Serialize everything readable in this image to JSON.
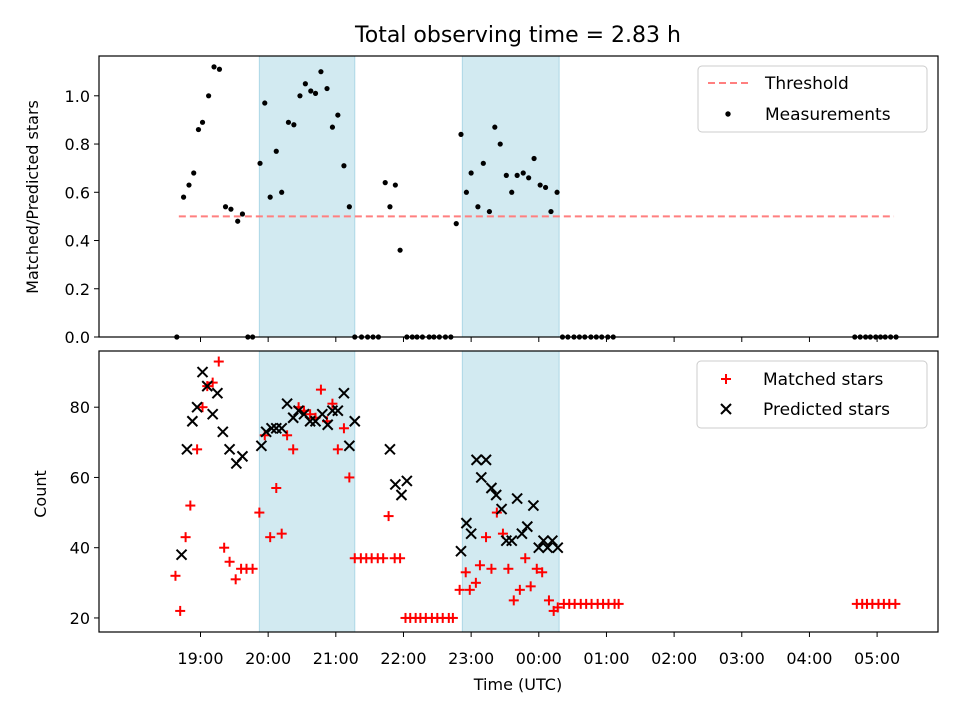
{
  "title": "Total observing time = 2.83 h",
  "xlabel": "Time (UTC)",
  "x_ticks": [
    "19:00",
    "20:00",
    "21:00",
    "22:00",
    "23:00",
    "00:00",
    "01:00",
    "02:00",
    "03:00",
    "04:00",
    "05:00"
  ],
  "colors": {
    "shade": "#add8e6",
    "threshold": "#ff7f7f",
    "measurement": "#000000",
    "matched": "#ff0000",
    "predicted": "#000000"
  },
  "chart_data": [
    {
      "type": "scatter",
      "ylabel": "Matched/Predicted stars",
      "y_ticks": [
        "0.0",
        "0.2",
        "0.4",
        "0.6",
        "0.8",
        "1.0"
      ],
      "xlim_hours": [
        17.5,
        29.9
      ],
      "ylim": [
        0.0,
        1.165
      ],
      "x_unit": "UTC hour (values past 24 are next day)",
      "shaded_intervals": [
        [
          19.87,
          21.28
        ],
        [
          22.87,
          24.3
        ]
      ],
      "threshold": {
        "name": "Threshold",
        "value": 0.5,
        "x_range": [
          18.68,
          29.25
        ]
      },
      "legend": {
        "position": "upper right",
        "entries": [
          "Threshold",
          "Measurements"
        ]
      },
      "series": [
        {
          "name": "Measurements",
          "x": [
            18.65,
            18.75,
            18.83,
            18.9,
            18.97,
            19.03,
            19.12,
            19.2,
            19.28,
            19.37,
            19.45,
            19.55,
            19.62,
            19.7,
            19.77,
            19.88,
            19.95,
            20.03,
            20.12,
            20.2,
            20.3,
            20.38,
            20.47,
            20.55,
            20.63,
            20.7,
            20.78,
            20.87,
            20.95,
            21.03,
            21.12,
            21.2,
            21.28,
            21.38,
            21.47,
            21.55,
            21.63,
            21.73,
            21.8,
            21.88,
            21.95,
            22.05,
            22.13,
            22.2,
            22.28,
            22.38,
            22.45,
            22.53,
            22.62,
            22.7,
            22.78,
            22.85,
            22.93,
            23.0,
            23.1,
            23.18,
            23.27,
            23.35,
            23.43,
            23.52,
            23.6,
            23.68,
            23.77,
            23.85,
            23.93,
            24.02,
            24.1,
            24.18,
            24.27,
            24.35,
            24.43,
            24.52,
            24.6,
            24.68,
            24.77,
            24.85,
            24.93,
            25.02,
            25.1,
            28.67,
            28.75,
            28.83,
            28.9,
            28.98,
            29.05,
            29.12,
            29.2,
            29.28
          ],
          "y": [
            0.0,
            0.58,
            0.63,
            0.68,
            0.86,
            0.89,
            1.0,
            1.12,
            1.11,
            0.54,
            0.53,
            0.48,
            0.51,
            0.0,
            0.0,
            0.72,
            0.97,
            0.58,
            0.77,
            0.6,
            0.89,
            0.88,
            1.0,
            1.05,
            1.02,
            1.01,
            1.1,
            1.03,
            0.87,
            0.92,
            0.71,
            0.54,
            0.0,
            0.0,
            0.0,
            0.0,
            0.0,
            0.64,
            0.54,
            0.63,
            0.36,
            0.0,
            0.0,
            0.0,
            0.0,
            0.0,
            0.0,
            0.0,
            0.0,
            0.0,
            0.47,
            0.84,
            0.6,
            0.68,
            0.54,
            0.72,
            0.52,
            0.87,
            0.8,
            0.67,
            0.6,
            0.67,
            0.68,
            0.66,
            0.74,
            0.63,
            0.62,
            0.52,
            0.6,
            0.0,
            0.0,
            0.0,
            0.0,
            0.0,
            0.0,
            0.0,
            0.0,
            0.0,
            0.0,
            0.0,
            0.0,
            0.0,
            0.0,
            0.0,
            0.0,
            0.0,
            0.0,
            0.0
          ]
        }
      ]
    },
    {
      "type": "scatter",
      "ylabel": "Count",
      "y_ticks": [
        "20",
        "40",
        "60",
        "80"
      ],
      "xlim_hours": [
        17.5,
        29.9
      ],
      "ylim": [
        16.0,
        96.0
      ],
      "x_unit": "UTC hour (values past 24 are next day)",
      "shaded_intervals": [
        [
          19.87,
          21.28
        ],
        [
          22.87,
          24.3
        ]
      ],
      "legend": {
        "position": "upper right",
        "entries": [
          "Matched stars",
          "Predicted stars"
        ]
      },
      "series": [
        {
          "name": "Matched stars",
          "marker": "plus",
          "x": [
            18.63,
            18.7,
            18.78,
            18.85,
            18.95,
            19.03,
            19.1,
            19.18,
            19.27,
            19.35,
            19.43,
            19.52,
            19.6,
            19.68,
            19.77,
            19.87,
            19.95,
            20.03,
            20.12,
            20.2,
            20.28,
            20.37,
            20.45,
            20.53,
            20.62,
            20.7,
            20.78,
            20.87,
            20.95,
            21.03,
            21.12,
            21.2,
            21.28,
            21.37,
            21.45,
            21.53,
            21.62,
            21.7,
            21.78,
            21.87,
            21.95,
            22.03,
            22.1,
            22.18,
            22.25,
            22.33,
            22.42,
            22.5,
            22.58,
            22.67,
            22.73,
            22.83,
            22.92,
            22.98,
            23.07,
            23.13,
            23.22,
            23.3,
            23.38,
            23.47,
            23.55,
            23.63,
            23.72,
            23.8,
            23.88,
            23.97,
            24.05,
            24.15,
            24.22,
            24.28,
            24.37,
            24.45,
            24.53,
            24.62,
            24.7,
            24.78,
            24.87,
            24.95,
            25.03,
            25.12,
            25.18,
            28.7,
            28.78,
            28.85,
            28.93,
            29.02,
            29.1,
            29.18,
            29.27
          ],
          "y": [
            32,
            22,
            43,
            52,
            68,
            80,
            86,
            87,
            93,
            40,
            36,
            31,
            34,
            34,
            34,
            50,
            72,
            43,
            57,
            44,
            72,
            68,
            80,
            79,
            78,
            77,
            85,
            76,
            81,
            68,
            74,
            60,
            37,
            37,
            37,
            37,
            37,
            37,
            49,
            37,
            37,
            20,
            20,
            20,
            20,
            20,
            20,
            20,
            20,
            20,
            20,
            28,
            33,
            28,
            30,
            35,
            43,
            34,
            50,
            44,
            34,
            25,
            28,
            37,
            29,
            34,
            33,
            25,
            22,
            23,
            24,
            24,
            24,
            24,
            24,
            24,
            24,
            24,
            24,
            24,
            24,
            24,
            24,
            24,
            24,
            24,
            24,
            24,
            24
          ]
        },
        {
          "name": "Predicted stars",
          "marker": "x",
          "x": [
            18.72,
            18.8,
            18.88,
            18.95,
            19.03,
            19.1,
            19.18,
            19.25,
            19.33,
            19.43,
            19.53,
            19.62,
            19.9,
            19.97,
            20.05,
            20.12,
            20.2,
            20.28,
            20.37,
            20.45,
            20.53,
            20.62,
            20.7,
            20.8,
            20.88,
            20.95,
            21.03,
            21.12,
            21.2,
            21.28,
            21.8,
            21.88,
            21.97,
            22.05,
            22.85,
            22.93,
            23.0,
            23.08,
            23.15,
            23.22,
            23.3,
            23.37,
            23.45,
            23.52,
            23.6,
            23.68,
            23.75,
            23.83,
            23.92,
            24.0,
            24.07,
            24.13,
            24.2,
            24.28
          ],
          "y": [
            38,
            68,
            76,
            80,
            90,
            86,
            78,
            84,
            73,
            68,
            64,
            66,
            69,
            73,
            74,
            74,
            74,
            81,
            77,
            79,
            78,
            76,
            76,
            78,
            75,
            79,
            79,
            84,
            69,
            76,
            68,
            58,
            55,
            59,
            39,
            47,
            44,
            65,
            60,
            65,
            57,
            55,
            51,
            42,
            42,
            54,
            44,
            46,
            52,
            40,
            42,
            40,
            42,
            40
          ]
        }
      ]
    }
  ]
}
